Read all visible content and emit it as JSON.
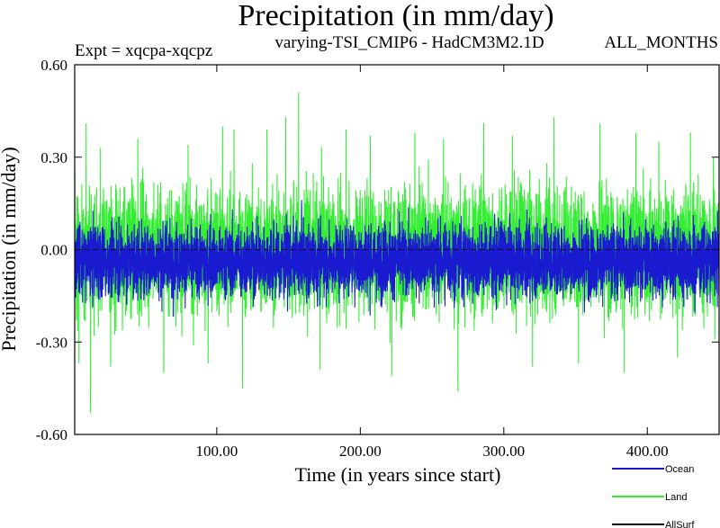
{
  "chart_data": {
    "type": "line",
    "title": "Precipitation (in mm/day)",
    "subtitle_left": "Expt = xqcpa-xqcpz",
    "subtitle_center": "varying-TSI_CMIP6 - HadCM3M2.1D",
    "subtitle_right": "ALL_MONTHS",
    "xlabel": "Time (in years since start)",
    "ylabel": "Precipitation (in mm/day)",
    "xlim": [
      1,
      450
    ],
    "ylim": [
      -0.6,
      0.6
    ],
    "x_ticks": [
      100,
      200,
      300,
      400
    ],
    "x_tick_labels": [
      "100.00",
      "200.00",
      "300.00",
      "400.00"
    ],
    "y_ticks": [
      -0.6,
      -0.3,
      0.0,
      0.3,
      0.6
    ],
    "y_tick_labels": [
      "-0.60",
      "-0.30",
      "0.00",
      "0.30",
      "0.60"
    ],
    "zero_line": "dashed",
    "legend_position": "bottom-right",
    "series": [
      {
        "name": "Land",
        "color": "#33ee33",
        "n_points": 5400,
        "mean": 0.0,
        "typical_range": [
          -0.25,
          0.25
        ],
        "extremes": [
          {
            "x": 4,
            "y": -0.37
          },
          {
            "x": 9,
            "y": 0.41
          },
          {
            "x": 12,
            "y": -0.53
          },
          {
            "x": 19,
            "y": 0.33
          },
          {
            "x": 26,
            "y": -0.38
          },
          {
            "x": 45,
            "y": 0.36
          },
          {
            "x": 63,
            "y": -0.4
          },
          {
            "x": 80,
            "y": 0.34
          },
          {
            "x": 94,
            "y": -0.37
          },
          {
            "x": 104,
            "y": 0.4
          },
          {
            "x": 112,
            "y": 0.39
          },
          {
            "x": 118,
            "y": -0.45
          },
          {
            "x": 135,
            "y": 0.39
          },
          {
            "x": 148,
            "y": 0.43
          },
          {
            "x": 157,
            "y": 0.51
          },
          {
            "x": 172,
            "y": -0.39
          },
          {
            "x": 190,
            "y": 0.39
          },
          {
            "x": 207,
            "y": 0.37
          },
          {
            "x": 222,
            "y": -0.41
          },
          {
            "x": 238,
            "y": 0.38
          },
          {
            "x": 258,
            "y": 0.36
          },
          {
            "x": 268,
            "y": -0.46
          },
          {
            "x": 286,
            "y": 0.41
          },
          {
            "x": 306,
            "y": 0.37
          },
          {
            "x": 320,
            "y": -0.38
          },
          {
            "x": 335,
            "y": 0.43
          },
          {
            "x": 352,
            "y": -0.37
          },
          {
            "x": 367,
            "y": 0.41
          },
          {
            "x": 384,
            "y": -0.4
          },
          {
            "x": 392,
            "y": 0.38
          },
          {
            "x": 408,
            "y": 0.35
          },
          {
            "x": 421,
            "y": -0.35
          },
          {
            "x": 430,
            "y": 0.38
          },
          {
            "x": 446,
            "y": 0.3
          }
        ]
      },
      {
        "name": "Ocean",
        "color": "#1a1ad0",
        "n_points": 5400,
        "mean": -0.05,
        "typical_range": [
          -0.17,
          0.1
        ]
      },
      {
        "name": "AllSurf",
        "color": "#000000",
        "n_points": 5400,
        "mean": -0.04,
        "typical_range": [
          -0.15,
          0.08
        ]
      }
    ]
  }
}
